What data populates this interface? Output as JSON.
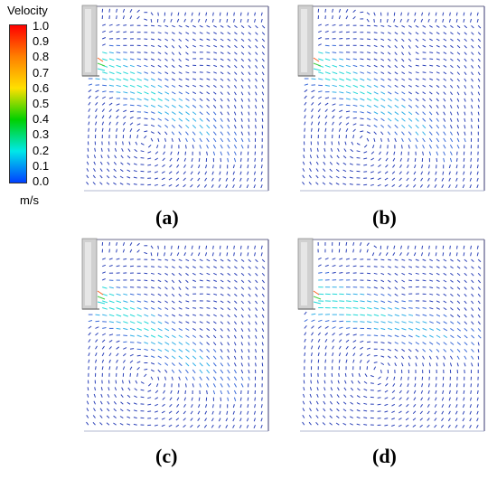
{
  "legend": {
    "title": "Velocity",
    "ticks": [
      "1.0",
      "0.9",
      "0.8",
      "0.7",
      "0.6",
      "0.5",
      "0.4",
      "0.3",
      "0.2",
      "0.1",
      "0.0"
    ],
    "unit": "m/s",
    "colors": [
      "#ff0000",
      "#ff8000",
      "#ffe000",
      "#00d000",
      "#00e8e8",
      "#0040ff"
    ]
  },
  "panels": [
    {
      "label": "(a)",
      "variant": "a"
    },
    {
      "label": "(b)",
      "variant": "b"
    },
    {
      "label": "(c)",
      "variant": "c"
    },
    {
      "label": "(d)",
      "variant": "d"
    }
  ]
}
